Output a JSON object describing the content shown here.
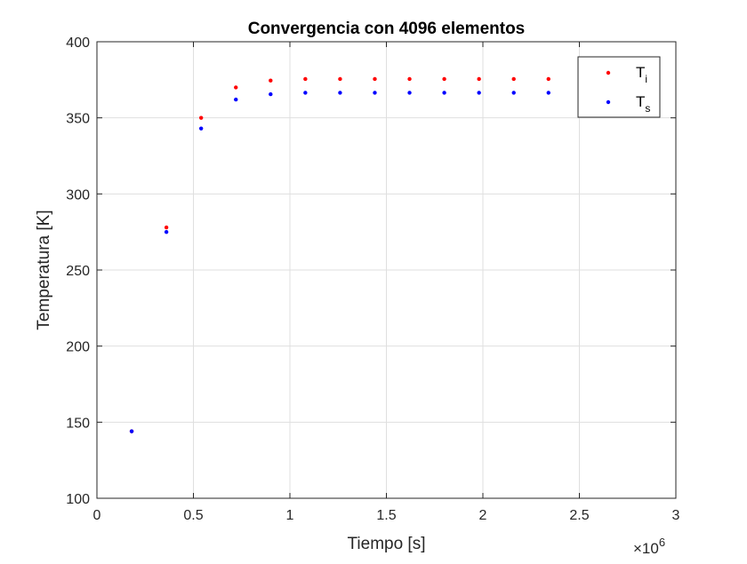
{
  "chart_data": {
    "type": "scatter",
    "title": "Convergencia con 4096 elementos",
    "xlabel": "Tiempo [s]",
    "ylabel": "Temperatura [K]",
    "x_multiplier_base": "×10",
    "x_multiplier_exp": "6",
    "xlim": [
      0,
      3
    ],
    "ylim": [
      100,
      400
    ],
    "xticks": [
      0,
      0.5,
      1,
      1.5,
      2,
      2.5,
      3
    ],
    "xtick_labels": [
      "0",
      "0.5",
      "1",
      "1.5",
      "2",
      "2.5",
      "3"
    ],
    "yticks": [
      100,
      150,
      200,
      250,
      300,
      350,
      400
    ],
    "ytick_labels": [
      "100",
      "150",
      "200",
      "250",
      "300",
      "350",
      "400"
    ],
    "grid": true,
    "legend_position": "top-right",
    "series": [
      {
        "name": "Ti",
        "label_main": "T",
        "label_sub": "i",
        "color": "#ff0000",
        "x": [
          0.18,
          0.36,
          0.54,
          0.72,
          0.9,
          1.08,
          1.26,
          1.44,
          1.62,
          1.8,
          1.98,
          2.16,
          2.34
        ],
        "y": [
          144,
          278,
          350,
          370,
          374.5,
          375.5,
          375.5,
          375.5,
          375.5,
          375.5,
          375.5,
          375.5,
          375.5
        ]
      },
      {
        "name": "Ts",
        "label_main": "T",
        "label_sub": "s",
        "color": "#0000ff",
        "x": [
          0.18,
          0.36,
          0.54,
          0.72,
          0.9,
          1.08,
          1.26,
          1.44,
          1.62,
          1.8,
          1.98,
          2.16,
          2.34
        ],
        "y": [
          144,
          275,
          343,
          362,
          365.5,
          366.5,
          366.5,
          366.5,
          366.5,
          366.5,
          366.5,
          366.5,
          366.5
        ]
      }
    ]
  }
}
